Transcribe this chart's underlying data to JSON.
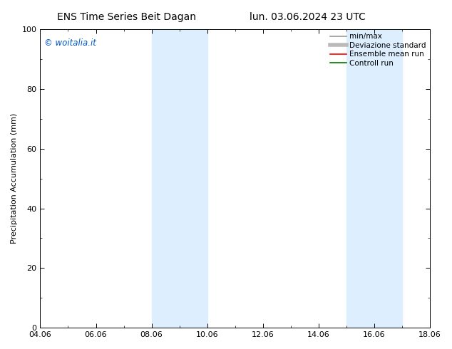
{
  "title_left": "ENS Time Series Beit Dagan",
  "title_right": "lun. 03.06.2024 23 UTC",
  "ylabel": "Precipitation Accumulation (mm)",
  "ylim": [
    0,
    100
  ],
  "yticks": [
    0,
    20,
    40,
    60,
    80,
    100
  ],
  "xtick_labels": [
    "04.06",
    "06.06",
    "08.06",
    "10.06",
    "12.06",
    "14.06",
    "16.06",
    "18.06"
  ],
  "xtick_values": [
    0,
    2,
    4,
    6,
    8,
    10,
    12,
    14
  ],
  "x_min": 0,
  "x_max": 14,
  "shaded_bands": [
    {
      "x_start": 4,
      "x_end": 6
    },
    {
      "x_start": 11,
      "x_end": 13
    }
  ],
  "shaded_color": "#ddeeff",
  "legend_items": [
    {
      "label": "min/max",
      "color": "#999999",
      "lw": 1.2
    },
    {
      "label": "Deviazione standard",
      "color": "#bbbbbb",
      "lw": 4.0
    },
    {
      "label": "Ensemble mean run",
      "color": "#ff0000",
      "lw": 1.2
    },
    {
      "label": "Controll run",
      "color": "#007700",
      "lw": 1.2
    }
  ],
  "watermark_text": "© woitalia.it",
  "watermark_color": "#0055cc",
  "background_color": "#ffffff",
  "title_fontsize": 10,
  "ylabel_fontsize": 8,
  "tick_fontsize": 8,
  "legend_fontsize": 7.5,
  "watermark_fontsize": 8.5
}
